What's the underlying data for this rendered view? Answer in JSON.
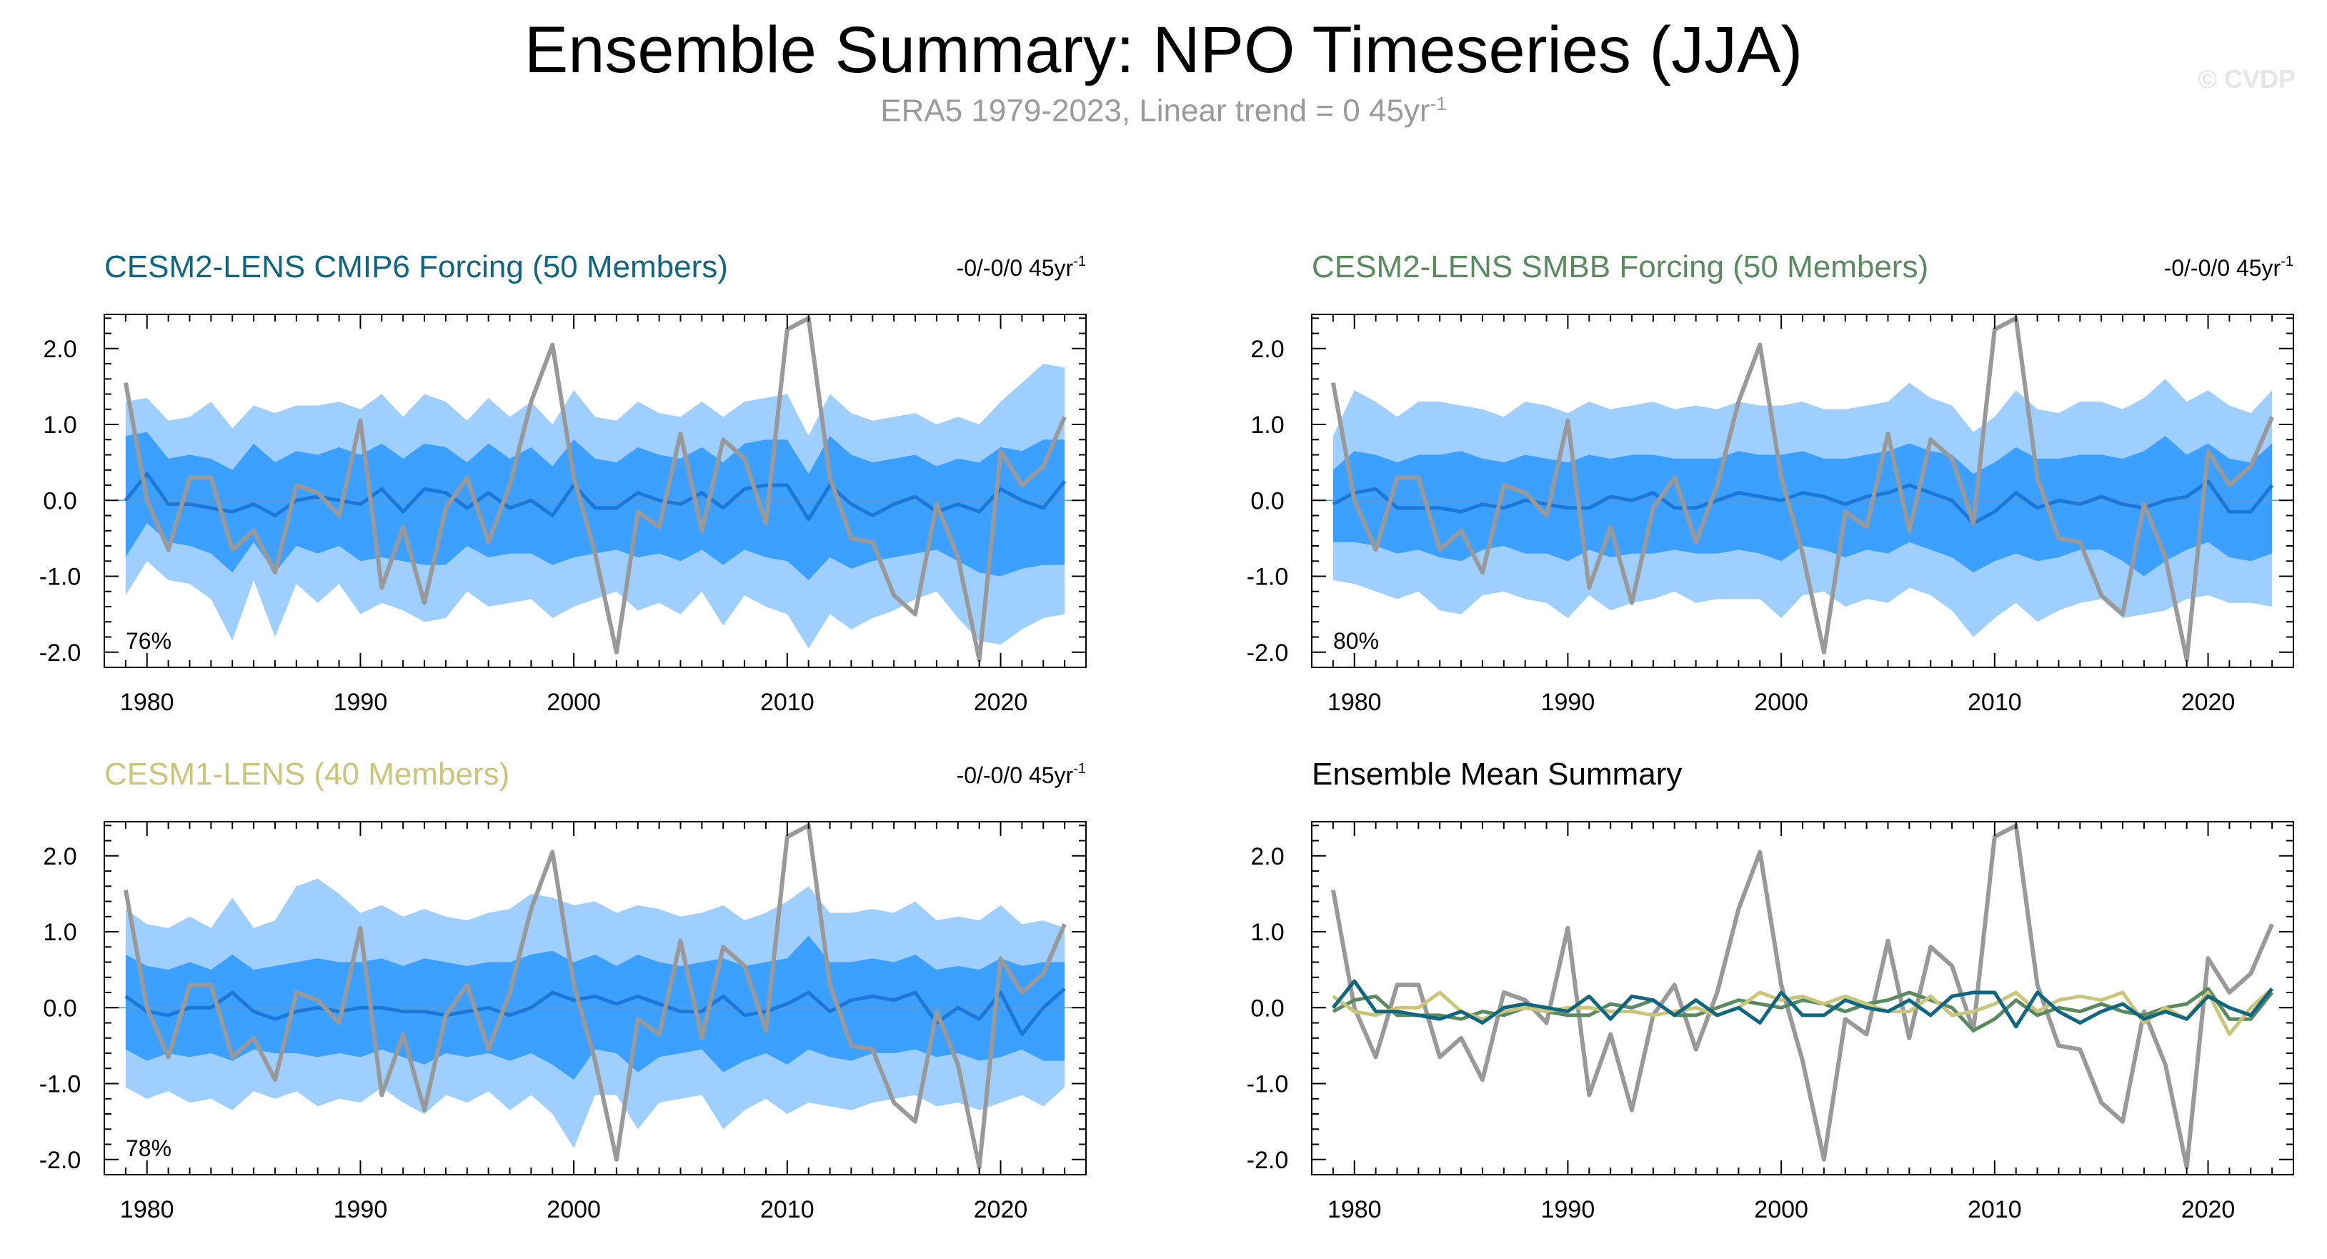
{
  "title": "Ensemble Summary: NPO Timeseries (JJA)",
  "subtitle": {
    "text": "ERA5 1979-2023, Linear trend = 0 45yr",
    "sup": "-1"
  },
  "watermark": "© CVDP",
  "colors": {
    "outer_band": "#9fcfff",
    "inner_band": "#3ba0ff",
    "ens_mean": "#1c78d6",
    "obs": "#999999",
    "cesm2_cmip6": "#0e6680",
    "cesm2_smbb": "#5a8a5f",
    "cesm1": "#cbc57a"
  },
  "chart_data": [
    {
      "type": "area",
      "title": "CESM2-LENS CMIP6 Forcing (50 Members)",
      "title_color": "#0e6680",
      "trend_label": "-0/-0/0 45yr",
      "trend_sup": "-1",
      "percent_label": "76%",
      "x_ticks": [
        1980,
        1990,
        2000,
        2010,
        2020
      ],
      "y_ticks": [
        "2.0",
        "1.0",
        "0.0",
        "-1.0",
        "-2.0"
      ],
      "ylim": [
        -2.2,
        2.45
      ],
      "xlim": [
        1978,
        2024
      ],
      "years": [
        1979,
        1980,
        1981,
        1982,
        1983,
        1984,
        1985,
        1986,
        1987,
        1988,
        1989,
        1990,
        1991,
        1992,
        1993,
        1994,
        1995,
        1996,
        1997,
        1998,
        1999,
        2000,
        2001,
        2002,
        2003,
        2004,
        2005,
        2006,
        2007,
        2008,
        2009,
        2010,
        2011,
        2012,
        2013,
        2014,
        2015,
        2016,
        2017,
        2018,
        2019,
        2020,
        2021,
        2022,
        2023
      ],
      "obs": [
        1.55,
        0.0,
        -0.65,
        0.3,
        0.3,
        -0.65,
        -0.4,
        -0.95,
        0.2,
        0.1,
        -0.2,
        1.05,
        -1.15,
        -0.35,
        -1.35,
        -0.1,
        0.3,
        -0.55,
        0.2,
        1.3,
        2.05,
        0.3,
        -0.7,
        -2.0,
        -0.15,
        -0.35,
        0.88,
        -0.4,
        0.8,
        0.55,
        -0.3,
        2.25,
        2.4,
        0.3,
        -0.5,
        -0.55,
        -1.25,
        -1.5,
        -0.05,
        -0.75,
        -2.1,
        0.65,
        0.2,
        0.45,
        1.1
      ],
      "ens_mean": [
        0.0,
        0.35,
        -0.05,
        -0.05,
        -0.1,
        -0.15,
        -0.05,
        -0.2,
        0.0,
        0.05,
        0.0,
        -0.05,
        0.15,
        -0.15,
        0.15,
        0.1,
        -0.1,
        0.1,
        -0.1,
        0.0,
        -0.2,
        0.2,
        -0.1,
        -0.1,
        0.1,
        0.0,
        -0.05,
        0.1,
        -0.1,
        0.15,
        0.2,
        0.2,
        -0.25,
        0.2,
        -0.05,
        -0.2,
        -0.05,
        0.05,
        -0.15,
        -0.05,
        -0.15,
        0.15,
        0.0,
        -0.1,
        0.25
      ],
      "p10": [
        -1.25,
        -0.8,
        -1.05,
        -1.1,
        -1.3,
        -1.85,
        -1.05,
        -1.8,
        -1.1,
        -1.35,
        -1.1,
        -1.5,
        -1.35,
        -1.45,
        -1.6,
        -1.55,
        -1.2,
        -1.4,
        -1.35,
        -1.3,
        -1.55,
        -1.4,
        -1.3,
        -1.2,
        -1.45,
        -1.35,
        -1.5,
        -1.2,
        -1.65,
        -1.25,
        -1.4,
        -1.5,
        -1.95,
        -1.5,
        -1.7,
        -1.55,
        -1.45,
        -1.3,
        -1.2,
        -1.55,
        -1.85,
        -1.9,
        -1.7,
        -1.55,
        -1.5
      ],
      "p30": [
        -0.75,
        -0.3,
        -0.55,
        -0.6,
        -0.7,
        -0.95,
        -0.55,
        -0.95,
        -0.6,
        -0.7,
        -0.6,
        -0.8,
        -0.75,
        -0.8,
        -0.85,
        -0.85,
        -0.6,
        -0.75,
        -0.7,
        -0.7,
        -0.85,
        -0.75,
        -0.7,
        -0.65,
        -0.75,
        -0.7,
        -0.8,
        -0.65,
        -0.85,
        -0.65,
        -0.75,
        -0.8,
        -1.05,
        -0.75,
        -0.9,
        -0.8,
        -0.75,
        -0.7,
        -0.65,
        -0.8,
        -0.95,
        -1.0,
        -0.9,
        -0.85,
        -0.85
      ],
      "p70": [
        0.85,
        0.9,
        0.55,
        0.6,
        0.55,
        0.4,
        0.75,
        0.5,
        0.65,
        0.6,
        0.7,
        0.6,
        0.75,
        0.55,
        0.75,
        0.7,
        0.5,
        0.75,
        0.55,
        0.7,
        0.45,
        0.8,
        0.55,
        0.5,
        0.7,
        0.6,
        0.55,
        0.7,
        0.5,
        0.75,
        0.8,
        0.8,
        0.35,
        0.85,
        0.6,
        0.5,
        0.55,
        0.6,
        0.45,
        0.55,
        0.5,
        0.7,
        0.65,
        0.8,
        0.8
      ],
      "p90": [
        1.3,
        1.35,
        1.05,
        1.1,
        1.3,
        0.95,
        1.25,
        1.15,
        1.25,
        1.25,
        1.3,
        1.2,
        1.4,
        1.1,
        1.4,
        1.3,
        1.05,
        1.35,
        1.1,
        1.3,
        1.0,
        1.45,
        1.1,
        1.05,
        1.3,
        1.15,
        1.1,
        1.3,
        1.1,
        1.3,
        1.35,
        1.4,
        0.85,
        1.4,
        1.15,
        1.05,
        1.1,
        1.15,
        1.0,
        1.1,
        1.0,
        1.3,
        1.55,
        1.8,
        1.75
      ]
    },
    {
      "type": "area",
      "title": "CESM2-LENS SMBB Forcing (50 Members)",
      "title_color": "#5a8a5f",
      "trend_label": "-0/-0/0 45yr",
      "trend_sup": "-1",
      "percent_label": "80%",
      "x_ticks": [
        1980,
        1990,
        2000,
        2010,
        2020
      ],
      "y_ticks": [
        "2.0",
        "1.0",
        "0.0",
        "-1.0",
        "-2.0"
      ],
      "ylim": [
        -2.2,
        2.45
      ],
      "xlim": [
        1978,
        2024
      ],
      "years": [
        1979,
        1980,
        1981,
        1982,
        1983,
        1984,
        1985,
        1986,
        1987,
        1988,
        1989,
        1990,
        1991,
        1992,
        1993,
        1994,
        1995,
        1996,
        1997,
        1998,
        1999,
        2000,
        2001,
        2002,
        2003,
        2004,
        2005,
        2006,
        2007,
        2008,
        2009,
        2010,
        2011,
        2012,
        2013,
        2014,
        2015,
        2016,
        2017,
        2018,
        2019,
        2020,
        2021,
        2022,
        2023
      ],
      "obs": [
        1.55,
        0.0,
        -0.65,
        0.3,
        0.3,
        -0.65,
        -0.4,
        -0.95,
        0.2,
        0.1,
        -0.2,
        1.05,
        -1.15,
        -0.35,
        -1.35,
        -0.1,
        0.3,
        -0.55,
        0.2,
        1.3,
        2.05,
        0.3,
        -0.7,
        -2.0,
        -0.15,
        -0.35,
        0.88,
        -0.4,
        0.8,
        0.55,
        -0.3,
        2.25,
        2.4,
        0.3,
        -0.5,
        -0.55,
        -1.25,
        -1.5,
        -0.05,
        -0.75,
        -2.1,
        0.65,
        0.2,
        0.45,
        1.1
      ],
      "ens_mean": [
        -0.05,
        0.1,
        0.15,
        -0.1,
        -0.1,
        -0.1,
        -0.15,
        -0.05,
        -0.1,
        0.0,
        -0.05,
        -0.1,
        -0.1,
        0.05,
        0.0,
        0.1,
        -0.1,
        -0.1,
        0.0,
        0.1,
        0.05,
        0.0,
        0.1,
        0.05,
        -0.05,
        0.05,
        0.1,
        0.2,
        0.1,
        0.0,
        -0.3,
        -0.15,
        0.1,
        -0.1,
        0.0,
        -0.05,
        0.05,
        -0.05,
        -0.1,
        0.0,
        0.05,
        0.25,
        -0.15,
        -0.15,
        0.2
      ],
      "p10": [
        -1.05,
        -1.1,
        -1.2,
        -1.3,
        -1.2,
        -1.45,
        -1.5,
        -1.25,
        -1.2,
        -1.3,
        -1.35,
        -1.55,
        -1.25,
        -1.45,
        -1.35,
        -1.3,
        -1.2,
        -1.35,
        -1.3,
        -1.3,
        -1.3,
        -1.55,
        -1.25,
        -1.2,
        -1.4,
        -1.3,
        -1.35,
        -1.15,
        -1.25,
        -1.45,
        -1.8,
        -1.55,
        -1.35,
        -1.6,
        -1.45,
        -1.35,
        -1.3,
        -1.55,
        -1.5,
        -1.45,
        -1.3,
        -1.25,
        -1.35,
        -1.35,
        -1.4
      ],
      "p30": [
        -0.55,
        -0.55,
        -0.6,
        -0.7,
        -0.65,
        -0.75,
        -0.8,
        -0.65,
        -0.6,
        -0.7,
        -0.7,
        -0.8,
        -0.65,
        -0.75,
        -0.7,
        -0.7,
        -0.65,
        -0.7,
        -0.7,
        -0.65,
        -0.7,
        -0.8,
        -0.6,
        -0.65,
        -0.75,
        -0.65,
        -0.7,
        -0.55,
        -0.65,
        -0.75,
        -0.95,
        -0.8,
        -0.7,
        -0.8,
        -0.75,
        -0.65,
        -0.65,
        -0.8,
        -1.0,
        -0.8,
        -0.65,
        -0.55,
        -0.75,
        -0.8,
        -0.7
      ],
      "p70": [
        0.4,
        0.65,
        0.6,
        0.5,
        0.6,
        0.6,
        0.65,
        0.55,
        0.5,
        0.6,
        0.55,
        0.5,
        0.6,
        0.55,
        0.6,
        0.6,
        0.55,
        0.55,
        0.55,
        0.65,
        0.6,
        0.6,
        0.65,
        0.55,
        0.55,
        0.6,
        0.65,
        0.75,
        0.65,
        0.6,
        0.35,
        0.5,
        0.7,
        0.55,
        0.55,
        0.6,
        0.6,
        0.55,
        0.65,
        0.85,
        0.6,
        0.75,
        0.55,
        0.5,
        0.75
      ],
      "p90": [
        0.85,
        1.45,
        1.3,
        1.1,
        1.3,
        1.3,
        1.25,
        1.2,
        1.1,
        1.3,
        1.25,
        1.15,
        1.3,
        1.2,
        1.25,
        1.3,
        1.2,
        1.25,
        1.2,
        1.3,
        1.25,
        1.25,
        1.3,
        1.2,
        1.2,
        1.25,
        1.3,
        1.55,
        1.35,
        1.25,
        0.9,
        1.1,
        1.45,
        1.2,
        1.15,
        1.3,
        1.3,
        1.2,
        1.35,
        1.6,
        1.3,
        1.45,
        1.25,
        1.15,
        1.45
      ]
    },
    {
      "type": "area",
      "title": "CESM1-LENS (40 Members)",
      "title_color": "#cbc57a",
      "trend_label": "-0/-0/0 45yr",
      "trend_sup": "-1",
      "percent_label": "78%",
      "x_ticks": [
        1980,
        1990,
        2000,
        2010,
        2020
      ],
      "y_ticks": [
        "2.0",
        "1.0",
        "0.0",
        "-1.0",
        "-2.0"
      ],
      "ylim": [
        -2.2,
        2.45
      ],
      "xlim": [
        1978,
        2024
      ],
      "years": [
        1979,
        1980,
        1981,
        1982,
        1983,
        1984,
        1985,
        1986,
        1987,
        1988,
        1989,
        1990,
        1991,
        1992,
        1993,
        1994,
        1995,
        1996,
        1997,
        1998,
        1999,
        2000,
        2001,
        2002,
        2003,
        2004,
        2005,
        2006,
        2007,
        2008,
        2009,
        2010,
        2011,
        2012,
        2013,
        2014,
        2015,
        2016,
        2017,
        2018,
        2019,
        2020,
        2021,
        2022,
        2023
      ],
      "obs": [
        1.55,
        0.0,
        -0.65,
        0.3,
        0.3,
        -0.65,
        -0.4,
        -0.95,
        0.2,
        0.1,
        -0.2,
        1.05,
        -1.15,
        -0.35,
        -1.35,
        -0.1,
        0.3,
        -0.55,
        0.2,
        1.3,
        2.05,
        0.3,
        -0.7,
        -2.0,
        -0.15,
        -0.35,
        0.88,
        -0.4,
        0.8,
        0.55,
        -0.3,
        2.25,
        2.4,
        0.3,
        -0.5,
        -0.55,
        -1.25,
        -1.5,
        -0.05,
        -0.75,
        -2.1,
        0.65,
        0.2,
        0.45,
        1.1
      ],
      "ens_mean": [
        0.15,
        -0.05,
        -0.1,
        0.0,
        0.0,
        0.2,
        -0.05,
        -0.15,
        -0.05,
        0.0,
        -0.05,
        0.0,
        0.0,
        -0.05,
        -0.05,
        -0.1,
        -0.05,
        0.0,
        -0.1,
        0.0,
        0.2,
        0.1,
        0.15,
        0.05,
        0.15,
        0.05,
        -0.05,
        -0.05,
        0.15,
        -0.1,
        -0.05,
        0.05,
        0.2,
        -0.05,
        0.1,
        0.15,
        0.1,
        0.2,
        -0.2,
        0.0,
        -0.15,
        0.2,
        -0.35,
        0.0,
        0.25
      ],
      "p10": [
        -1.05,
        -1.2,
        -1.1,
        -1.25,
        -1.2,
        -1.35,
        -1.1,
        -1.2,
        -1.1,
        -1.3,
        -1.2,
        -1.25,
        -1.05,
        -1.25,
        -1.4,
        -1.15,
        -1.25,
        -1.1,
        -1.35,
        -1.15,
        -1.4,
        -1.85,
        -1.15,
        -1.15,
        -1.6,
        -1.25,
        -1.2,
        -1.15,
        -1.6,
        -1.35,
        -1.2,
        -1.4,
        -1.25,
        -1.3,
        -1.35,
        -1.25,
        -1.2,
        -1.15,
        -1.3,
        -1.25,
        -1.35,
        -1.25,
        -1.15,
        -1.3,
        -1.05
      ],
      "p30": [
        -0.55,
        -0.7,
        -0.6,
        -0.65,
        -0.6,
        -0.7,
        -0.55,
        -0.6,
        -0.6,
        -0.65,
        -0.6,
        -0.65,
        -0.55,
        -0.65,
        -0.75,
        -0.6,
        -0.65,
        -0.6,
        -0.7,
        -0.6,
        -0.75,
        -0.95,
        -0.55,
        -0.6,
        -0.85,
        -0.65,
        -0.6,
        -0.55,
        -0.85,
        -0.7,
        -0.6,
        -0.75,
        -0.55,
        -0.65,
        -0.7,
        -0.6,
        -0.6,
        -0.55,
        -0.65,
        -0.6,
        -0.7,
        -0.65,
        -0.55,
        -0.7,
        -0.7
      ],
      "p70": [
        0.7,
        0.55,
        0.5,
        0.6,
        0.5,
        0.7,
        0.5,
        0.55,
        0.6,
        0.65,
        0.6,
        0.6,
        0.65,
        0.55,
        0.65,
        0.6,
        0.55,
        0.6,
        0.6,
        0.7,
        0.75,
        0.6,
        0.7,
        0.55,
        0.7,
        0.6,
        0.55,
        0.6,
        0.65,
        0.55,
        0.6,
        0.65,
        0.95,
        0.6,
        0.6,
        0.65,
        0.6,
        0.7,
        0.5,
        0.55,
        0.5,
        0.65,
        0.55,
        0.6,
        0.6
      ],
      "p90": [
        1.3,
        1.1,
        1.05,
        1.2,
        1.05,
        1.45,
        1.05,
        1.15,
        1.6,
        1.7,
        1.5,
        1.25,
        1.35,
        1.2,
        1.3,
        1.2,
        1.15,
        1.25,
        1.3,
        1.5,
        1.45,
        1.35,
        1.4,
        1.25,
        1.35,
        1.3,
        1.2,
        1.25,
        1.35,
        1.15,
        1.25,
        1.4,
        1.6,
        1.25,
        1.25,
        1.3,
        1.25,
        1.4,
        1.15,
        1.2,
        1.15,
        1.35,
        1.1,
        1.15,
        1.05
      ]
    },
    {
      "type": "line",
      "title": "Ensemble Mean Summary",
      "title_color": "#000000",
      "x_ticks": [
        1980,
        1990,
        2000,
        2010,
        2020
      ],
      "y_ticks": [
        "2.0",
        "1.0",
        "0.0",
        "-1.0",
        "-2.0"
      ],
      "ylim": [
        -2.2,
        2.45
      ],
      "xlim": [
        1978,
        2024
      ],
      "years": [
        1979,
        1980,
        1981,
        1982,
        1983,
        1984,
        1985,
        1986,
        1987,
        1988,
        1989,
        1990,
        1991,
        1992,
        1993,
        1994,
        1995,
        1996,
        1997,
        1998,
        1999,
        2000,
        2001,
        2002,
        2003,
        2004,
        2005,
        2006,
        2007,
        2008,
        2009,
        2010,
        2011,
        2012,
        2013,
        2014,
        2015,
        2016,
        2017,
        2018,
        2019,
        2020,
        2021,
        2022,
        2023
      ],
      "series_keys": [
        "obs",
        "cesm2_cmip6",
        "cesm2_smbb",
        "cesm1"
      ],
      "obs": [
        1.55,
        0.0,
        -0.65,
        0.3,
        0.3,
        -0.65,
        -0.4,
        -0.95,
        0.2,
        0.1,
        -0.2,
        1.05,
        -1.15,
        -0.35,
        -1.35,
        -0.1,
        0.3,
        -0.55,
        0.2,
        1.3,
        2.05,
        0.3,
        -0.7,
        -2.0,
        -0.15,
        -0.35,
        0.88,
        -0.4,
        0.8,
        0.55,
        -0.3,
        2.25,
        2.4,
        0.3,
        -0.5,
        -0.55,
        -1.25,
        -1.5,
        -0.05,
        -0.75,
        -2.1,
        0.65,
        0.2,
        0.45,
        1.1
      ],
      "cesm2_cmip6": [
        0.0,
        0.35,
        -0.05,
        -0.05,
        -0.1,
        -0.15,
        -0.05,
        -0.2,
        0.0,
        0.05,
        0.0,
        -0.05,
        0.15,
        -0.15,
        0.15,
        0.1,
        -0.1,
        0.1,
        -0.1,
        0.0,
        -0.2,
        0.2,
        -0.1,
        -0.1,
        0.1,
        0.0,
        -0.05,
        0.1,
        -0.1,
        0.15,
        0.2,
        0.2,
        -0.25,
        0.2,
        -0.05,
        -0.2,
        -0.05,
        0.05,
        -0.15,
        -0.05,
        -0.15,
        0.15,
        0.0,
        -0.1,
        0.25
      ],
      "cesm2_smbb": [
        -0.05,
        0.1,
        0.15,
        -0.1,
        -0.1,
        -0.1,
        -0.15,
        -0.05,
        -0.1,
        0.0,
        -0.05,
        -0.1,
        -0.1,
        0.05,
        0.0,
        0.1,
        -0.1,
        -0.1,
        0.0,
        0.1,
        0.05,
        0.0,
        0.1,
        0.05,
        -0.05,
        0.05,
        0.1,
        0.2,
        0.1,
        0.0,
        -0.3,
        -0.15,
        0.1,
        -0.1,
        0.0,
        -0.05,
        0.05,
        -0.05,
        -0.1,
        0.0,
        0.05,
        0.25,
        -0.15,
        -0.15,
        0.2
      ],
      "cesm1": [
        0.15,
        -0.05,
        -0.1,
        0.0,
        0.0,
        0.2,
        -0.05,
        -0.15,
        -0.05,
        0.0,
        -0.05,
        0.0,
        0.0,
        -0.05,
        -0.05,
        -0.1,
        -0.05,
        0.0,
        -0.1,
        0.0,
        0.2,
        0.1,
        0.15,
        0.05,
        0.15,
        0.05,
        -0.05,
        -0.05,
        0.15,
        -0.1,
        -0.05,
        0.05,
        0.2,
        -0.05,
        0.1,
        0.15,
        0.1,
        0.2,
        -0.2,
        0.0,
        -0.15,
        0.2,
        -0.35,
        0.0,
        0.25
      ]
    }
  ]
}
